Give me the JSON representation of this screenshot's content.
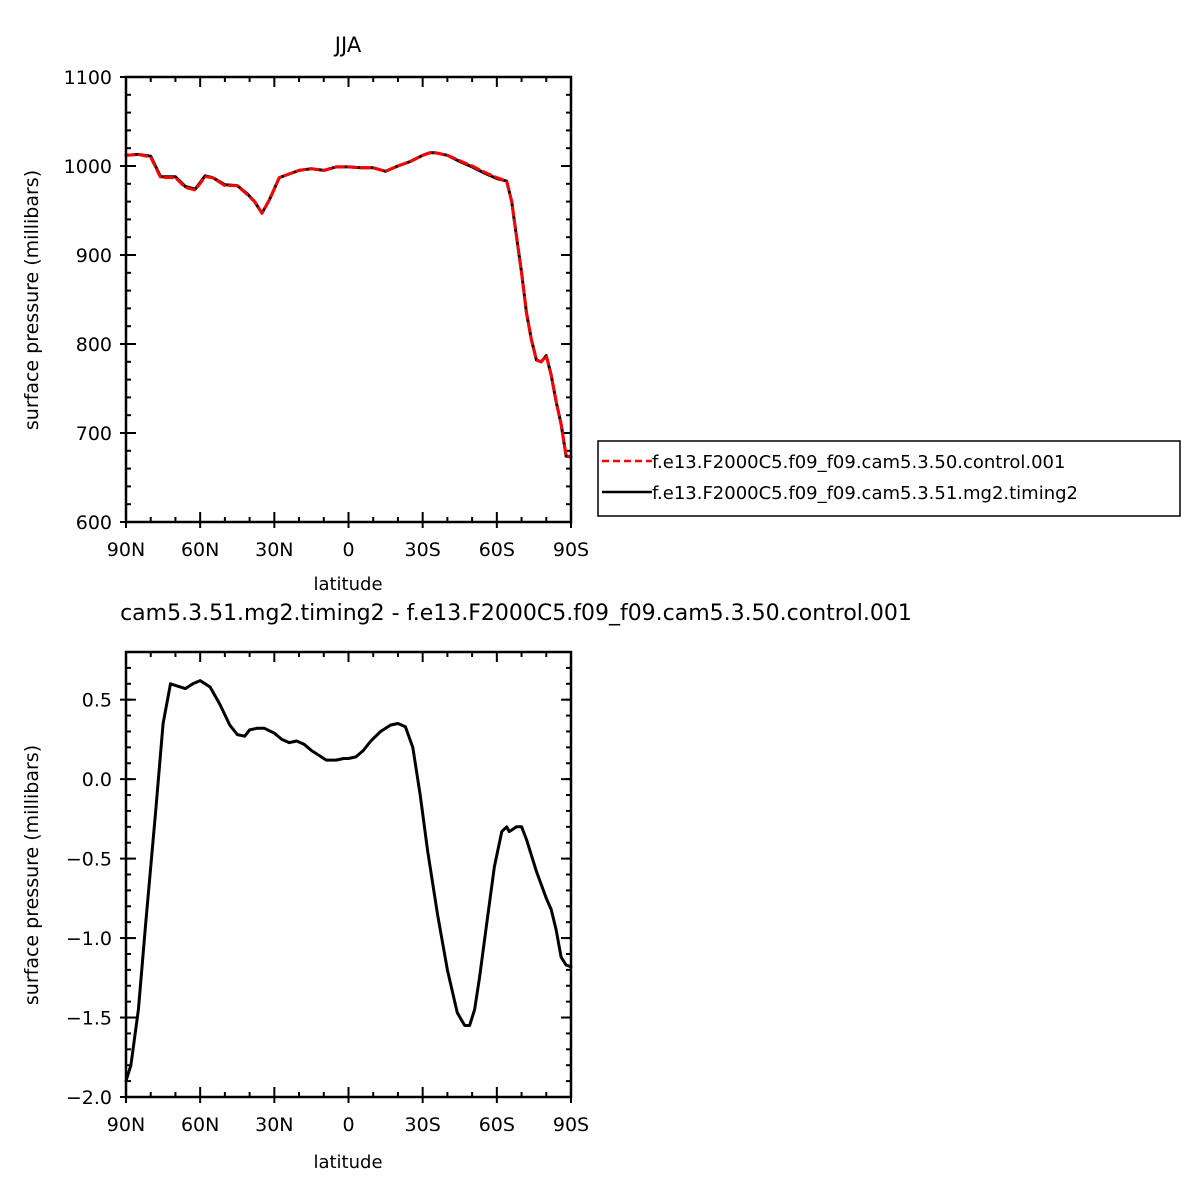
{
  "chart_data": [
    {
      "type": "line",
      "title": "JJA",
      "xlabel": "latitude",
      "ylabel": "surface pressure (millibars)",
      "xlim": [
        90,
        -90
      ],
      "ylim": [
        600,
        1100
      ],
      "x_ticks": [
        90,
        60,
        30,
        0,
        -30,
        -60,
        -90
      ],
      "x_tick_labels": [
        "90N",
        "60N",
        "30N",
        "0",
        "30S",
        "60S",
        "90S"
      ],
      "y_ticks": [
        600,
        700,
        800,
        900,
        1000,
        1100
      ],
      "y_tick_labels": [
        "600",
        "700",
        "800",
        "900",
        "1000",
        "1100"
      ],
      "legend_position": "right",
      "x": [
        90,
        85,
        80,
        76,
        70,
        66,
        62,
        58,
        55,
        50,
        45,
        41,
        38,
        35,
        32,
        28,
        25,
        20,
        15,
        10,
        5,
        0,
        -5,
        -10,
        -15,
        -20,
        -25,
        -30,
        -33,
        -35,
        -40,
        -45,
        -50,
        -55,
        -60,
        -64,
        -66,
        -68,
        -70,
        -72,
        -74,
        -76,
        -78,
        -80,
        -82,
        -84,
        -86,
        -88,
        -90
      ],
      "series": [
        {
          "name": "f.e13.F2000C5.f09_f09.cam5.3.50.control.001",
          "color": "#ff0000",
          "style": "dashed",
          "values": [
            1012,
            1013,
            1010,
            987,
            987,
            976,
            973,
            988,
            987,
            978,
            978,
            968,
            960,
            947,
            962,
            987,
            990,
            995,
            997,
            995,
            999,
            999,
            998,
            998,
            994,
            1000,
            1005,
            1012,
            1015,
            1015,
            1012,
            1006,
            1000,
            993,
            987,
            983,
            960,
            920,
            880,
            835,
            805,
            782,
            780,
            787,
            765,
            735,
            710,
            674,
            673
          ]
        },
        {
          "name": "f.e13.F2000C5.f09_f09.cam5.3.51.mg2.timing2",
          "color": "#000000",
          "style": "solid",
          "values": [
            1012,
            1013,
            1011,
            988,
            988,
            977,
            974,
            989,
            987,
            979,
            978,
            969,
            960,
            947,
            962,
            987,
            990,
            995,
            997,
            995,
            999,
            999,
            998,
            998,
            994,
            1000,
            1005,
            1012,
            1015,
            1015,
            1012,
            1005,
            999,
            992,
            986,
            983,
            960,
            920,
            880,
            835,
            805,
            782,
            780,
            787,
            765,
            735,
            710,
            674,
            673
          ]
        }
      ]
    },
    {
      "type": "line",
      "title": "cam5.3.51.mg2.timing2 - f.e13.F2000C5.f09_f09.cam5.3.50.control.001",
      "xlabel": "latitude",
      "ylabel": "surface pressure (millibars)",
      "xlim": [
        90,
        -90
      ],
      "ylim": [
        -2.0,
        0.8
      ],
      "x_ticks": [
        90,
        60,
        30,
        0,
        -30,
        -60,
        -90
      ],
      "x_tick_labels": [
        "90N",
        "60N",
        "30N",
        "0",
        "30S",
        "60S",
        "90S"
      ],
      "y_ticks": [
        -2.0,
        -1.5,
        -1.0,
        -0.5,
        0.0,
        0.5
      ],
      "y_tick_labels": [
        "−2.0",
        "−1.5",
        "−1.0",
        "−0.5",
        "0.0",
        "0.5"
      ],
      "x": [
        90,
        88,
        85,
        82,
        78,
        75,
        72,
        70,
        66,
        63,
        60,
        56,
        52,
        48,
        45,
        42,
        40,
        37,
        34,
        30,
        27,
        24,
        21,
        18,
        15,
        12,
        9,
        5,
        2,
        0,
        -3,
        -6,
        -9,
        -13,
        -17,
        -20,
        -23,
        -26,
        -29,
        -32,
        -36,
        -40,
        -44,
        -47,
        -49,
        -51,
        -53,
        -56,
        -59,
        -62,
        -64,
        -65,
        -66,
        -68,
        -70,
        -72,
        -76,
        -80,
        -82,
        -84,
        -86,
        -88,
        -90
      ],
      "series": [
        {
          "name": "",
          "color": "#000000",
          "style": "solid",
          "values": [
            -1.9,
            -1.8,
            -1.45,
            -0.9,
            -0.2,
            0.35,
            0.6,
            0.59,
            0.57,
            0.6,
            0.62,
            0.58,
            0.47,
            0.34,
            0.28,
            0.27,
            0.31,
            0.32,
            0.32,
            0.29,
            0.25,
            0.23,
            0.24,
            0.22,
            0.18,
            0.15,
            0.12,
            0.12,
            0.13,
            0.13,
            0.14,
            0.18,
            0.24,
            0.3,
            0.34,
            0.35,
            0.33,
            0.2,
            -0.1,
            -0.45,
            -0.85,
            -1.2,
            -1.47,
            -1.55,
            -1.55,
            -1.45,
            -1.25,
            -0.9,
            -0.55,
            -0.33,
            -0.3,
            -0.33,
            -0.32,
            -0.3,
            -0.3,
            -0.38,
            -0.58,
            -0.75,
            -0.82,
            -0.95,
            -1.12,
            -1.17,
            -1.18
          ]
        }
      ]
    }
  ]
}
